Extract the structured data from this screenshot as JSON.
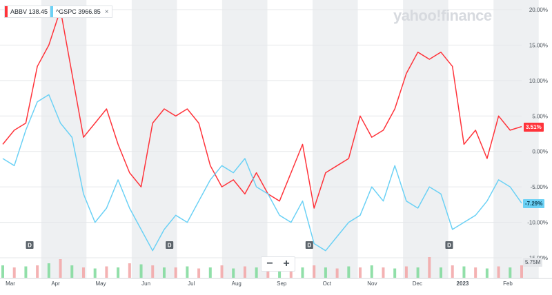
{
  "legend": {
    "abbv_label": "ABBV",
    "abbv_value": "138.45",
    "gspc_label": "^GSPC",
    "gspc_value": "3966.85",
    "close_glyph": "×"
  },
  "brand": "yahoo!finance",
  "last_values": {
    "abbv": "3.51%",
    "gspc": "-7.29%"
  },
  "volume_readout": "5.75M",
  "zoom": {
    "minus": "−",
    "plus": "+"
  },
  "dividend_marker": "D",
  "colors": {
    "abbv": "#ff333a",
    "gspc": "#6bd1f5",
    "band": "#eef0f2",
    "grid": "#e5e7ea"
  },
  "chart_data": {
    "type": "line",
    "x": [
      "Mar",
      "Mar",
      "Mar",
      "Apr",
      "Apr",
      "Apr",
      "Apr",
      "May",
      "May",
      "May",
      "May",
      "Jun",
      "Jun",
      "Jun",
      "Jun",
      "Jul",
      "Jul",
      "Jul",
      "Jul",
      "Aug",
      "Aug",
      "Aug",
      "Aug",
      "Sep",
      "Sep",
      "Sep",
      "Sep",
      "Oct",
      "Oct",
      "Oct",
      "Oct",
      "Nov",
      "Nov",
      "Nov",
      "Nov",
      "Dec",
      "Dec",
      "Dec",
      "Dec",
      "2023",
      "2023",
      "2023",
      "2023",
      "Feb",
      "Feb",
      "Feb"
    ],
    "x_ticks": [
      "Mar",
      "Apr",
      "May",
      "Jun",
      "Jul",
      "Aug",
      "Sep",
      "Oct",
      "Nov",
      "Dec",
      "2023",
      "Feb"
    ],
    "y_ticks": [
      "20.00%",
      "15.00%",
      "10.00%",
      "5.00%",
      "0.00%",
      "-5.00%",
      "-10.00%",
      "-15.00%"
    ],
    "ylim": [
      -15,
      20
    ],
    "series": [
      {
        "name": "ABBV",
        "values": [
          1,
          3,
          4,
          12,
          15,
          20,
          11,
          2,
          4,
          6,
          1,
          -3,
          -5,
          4,
          6,
          5,
          6,
          4,
          -2,
          -5,
          -4,
          -6,
          -3,
          -6,
          -7,
          -3,
          1,
          -8,
          -3,
          -2,
          -1,
          5,
          2,
          3,
          6,
          11,
          14,
          13,
          14,
          12,
          1,
          3,
          -1,
          5,
          3,
          3.51
        ]
      },
      {
        "name": "^GSPC",
        "values": [
          -1,
          -2,
          3,
          7,
          8,
          4,
          2,
          -6,
          -10,
          -8,
          -4,
          -8,
          -11,
          -14,
          -11,
          -9,
          -10,
          -7,
          -4,
          -2,
          -3,
          -1,
          -5,
          -6,
          -9,
          -10,
          -7,
          -13,
          -14,
          -12,
          -10,
          -9,
          -5,
          -7,
          -2,
          -7,
          -8,
          -5,
          -6,
          -11,
          -10,
          -9,
          -7,
          -4,
          -5,
          -7.29
        ]
      }
    ],
    "volume": [
      {
        "positive": true,
        "v": 0.6
      },
      {
        "positive": false,
        "v": 0.5
      },
      {
        "positive": true,
        "v": 0.55
      },
      {
        "positive": false,
        "v": 0.6
      },
      {
        "positive": true,
        "v": 0.7
      },
      {
        "positive": false,
        "v": 0.9
      },
      {
        "positive": true,
        "v": 0.6
      },
      {
        "positive": false,
        "v": 0.5
      },
      {
        "positive": true,
        "v": 0.45
      },
      {
        "positive": false,
        "v": 0.55
      },
      {
        "positive": true,
        "v": 0.5
      },
      {
        "positive": false,
        "v": 0.7
      },
      {
        "positive": true,
        "v": 0.65
      },
      {
        "positive": false,
        "v": 0.6
      },
      {
        "positive": true,
        "v": 0.5
      },
      {
        "positive": false,
        "v": 0.5
      },
      {
        "positive": true,
        "v": 0.55
      },
      {
        "positive": false,
        "v": 0.45
      },
      {
        "positive": true,
        "v": 0.5
      },
      {
        "positive": false,
        "v": 0.6
      },
      {
        "positive": true,
        "v": 0.45
      },
      {
        "positive": false,
        "v": 0.55
      },
      {
        "positive": true,
        "v": 0.5
      },
      {
        "positive": false,
        "v": 0.45
      },
      {
        "positive": true,
        "v": 0.5
      },
      {
        "positive": false,
        "v": 0.55
      },
      {
        "positive": true,
        "v": 0.5
      },
      {
        "positive": false,
        "v": 0.6
      },
      {
        "positive": true,
        "v": 0.5
      },
      {
        "positive": false,
        "v": 0.45
      },
      {
        "positive": true,
        "v": 0.55
      },
      {
        "positive": false,
        "v": 0.5
      },
      {
        "positive": true,
        "v": 0.6
      },
      {
        "positive": false,
        "v": 0.5
      },
      {
        "positive": true,
        "v": 0.45
      },
      {
        "positive": false,
        "v": 0.55
      },
      {
        "positive": true,
        "v": 0.5
      },
      {
        "positive": false,
        "v": 1.0
      },
      {
        "positive": true,
        "v": 0.5
      },
      {
        "positive": false,
        "v": 0.6
      },
      {
        "positive": true,
        "v": 0.55
      },
      {
        "positive": false,
        "v": 0.5
      },
      {
        "positive": true,
        "v": 0.45
      },
      {
        "positive": false,
        "v": 0.55
      },
      {
        "positive": true,
        "v": 0.5
      },
      {
        "positive": false,
        "v": 0.6
      }
    ]
  }
}
